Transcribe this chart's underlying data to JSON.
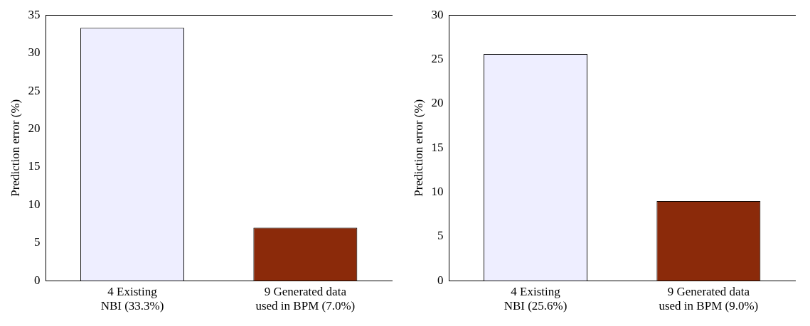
{
  "chart_data": [
    {
      "type": "bar",
      "categories": [
        "4 Existing\nNBI (33.3%)",
        "9 Generated data\nused in BPM (7.0%)"
      ],
      "values": [
        33.3,
        7.0
      ],
      "colors": [
        "#eeeeff",
        "#8b2a0a"
      ],
      "ylabel": "Prediction error (%)",
      "ylim": [
        0,
        35
      ],
      "yticks": [
        0,
        5,
        10,
        15,
        20,
        25,
        30,
        35
      ],
      "grid": false,
      "legend": false
    },
    {
      "type": "bar",
      "categories": [
        "4 Existing\nNBI (25.6%)",
        "9 Generated data\nused in BPM (9.0%)"
      ],
      "values": [
        25.6,
        9.0
      ],
      "colors": [
        "#eeeeff",
        "#8b2a0a"
      ],
      "ylabel": "Prediction error (%)",
      "ylim": [
        0,
        30
      ],
      "yticks": [
        0,
        5,
        10,
        15,
        20,
        25,
        30
      ],
      "grid": false,
      "legend": false
    }
  ]
}
